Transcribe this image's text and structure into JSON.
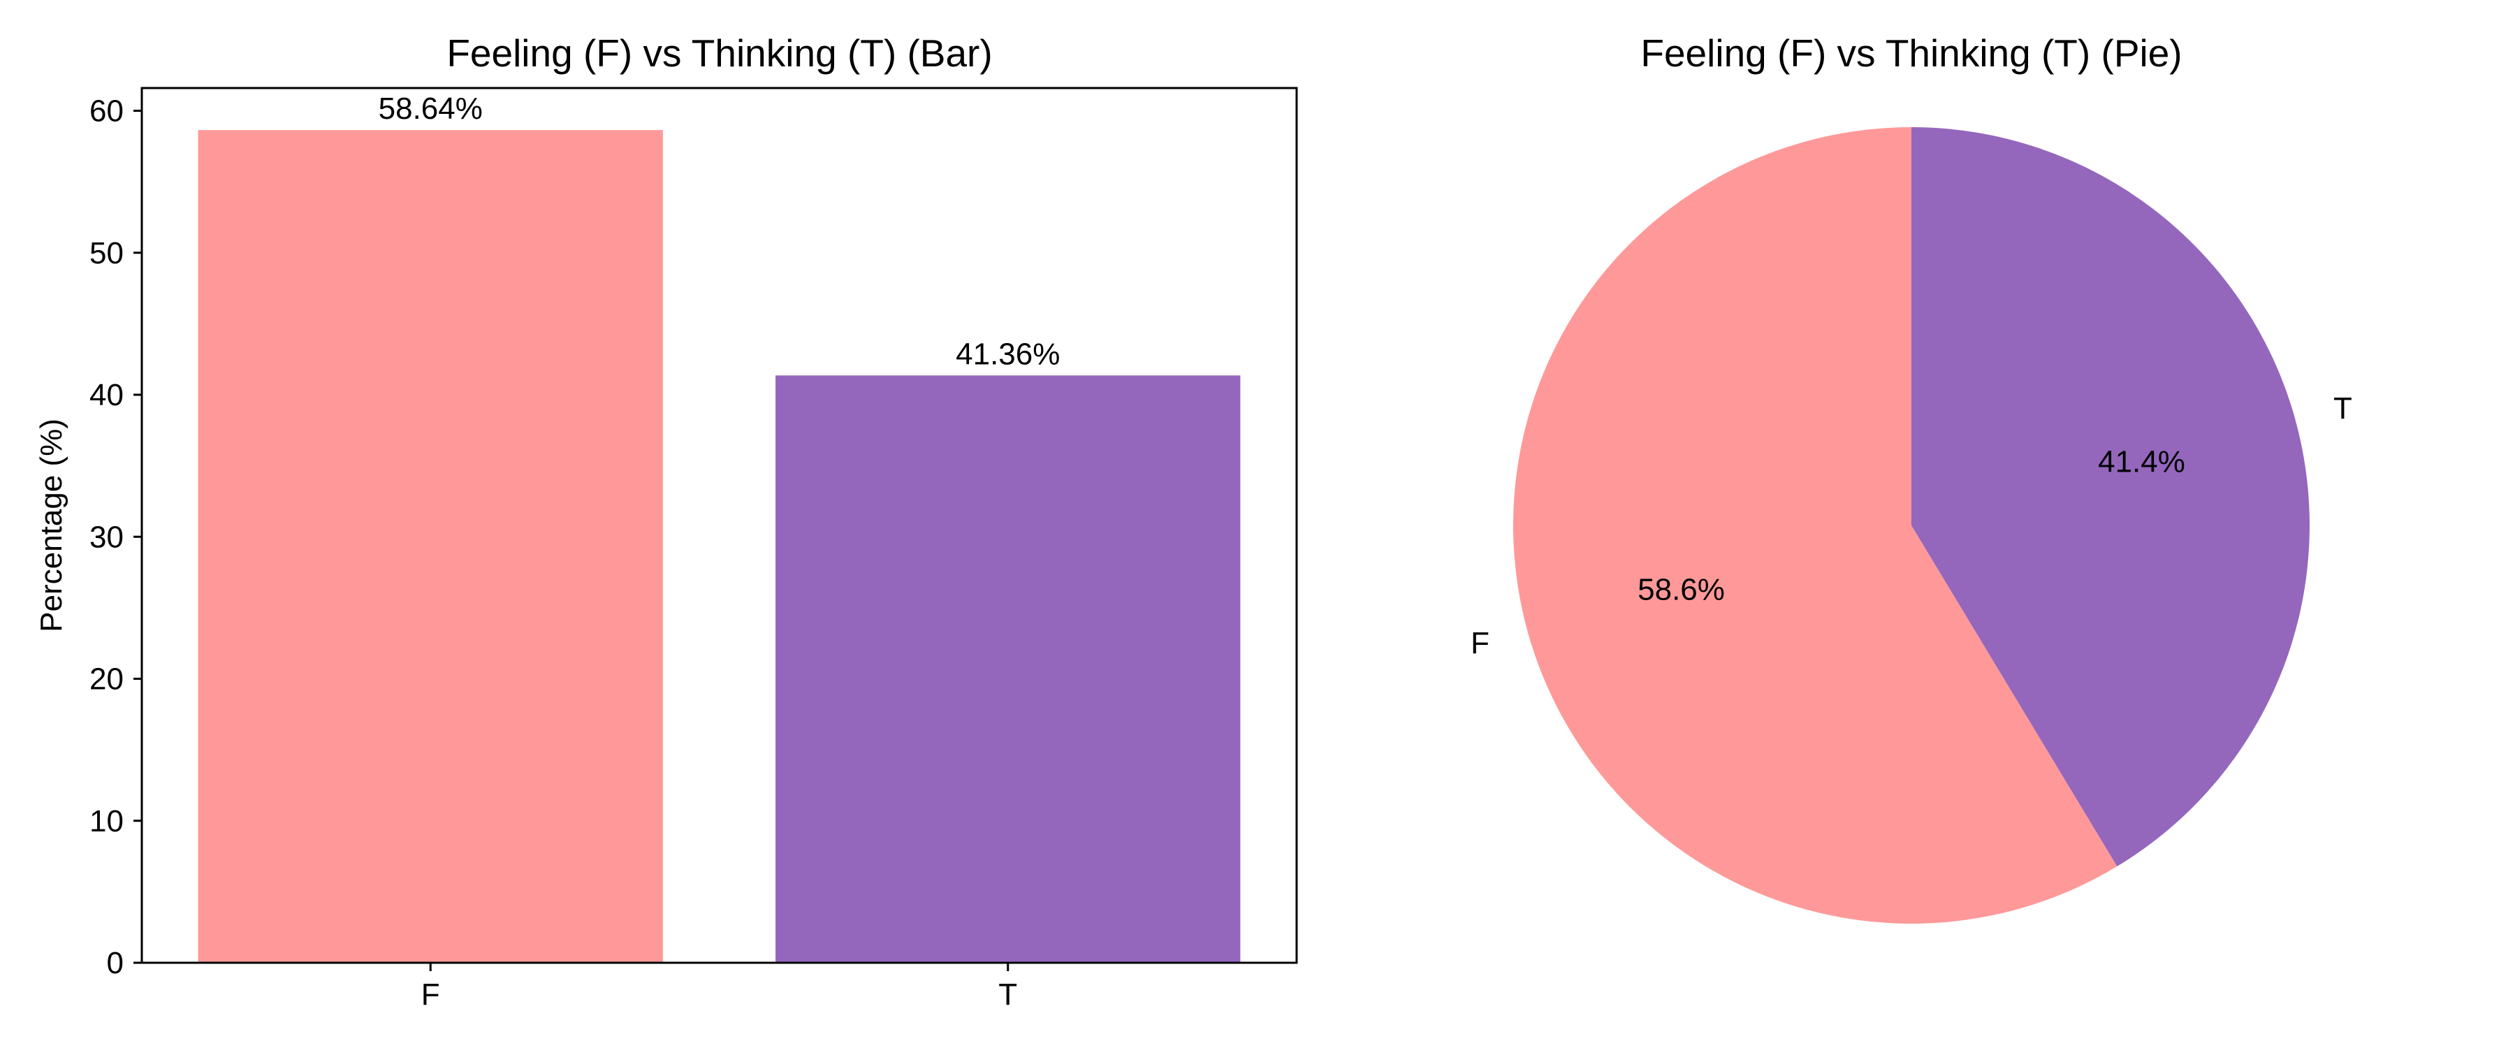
{
  "chart_data": [
    {
      "type": "bar",
      "title": "Feeling (F) vs Thinking (T) (Bar)",
      "categories": [
        "F",
        "T"
      ],
      "values": [
        58.64,
        41.36
      ],
      "data_labels": [
        "58.64%",
        "41.36%"
      ],
      "colors": [
        "#ff9999",
        "#9467bd"
      ],
      "xlabel": "",
      "ylabel": "Percentage (%)",
      "ylim": [
        0,
        61.6
      ],
      "yticks": [
        0,
        10,
        20,
        30,
        40,
        50,
        60
      ],
      "grid": false
    },
    {
      "type": "pie",
      "title": "Feeling (F) vs Thinking (T) (Pie)",
      "labels": [
        "F",
        "T"
      ],
      "values": [
        58.64,
        41.36
      ],
      "percent_labels": [
        "58.6%",
        "41.4%"
      ],
      "colors": [
        "#ff9999",
        "#9467bd"
      ],
      "start_angle": 90,
      "direction": "counterclockwise"
    }
  ]
}
